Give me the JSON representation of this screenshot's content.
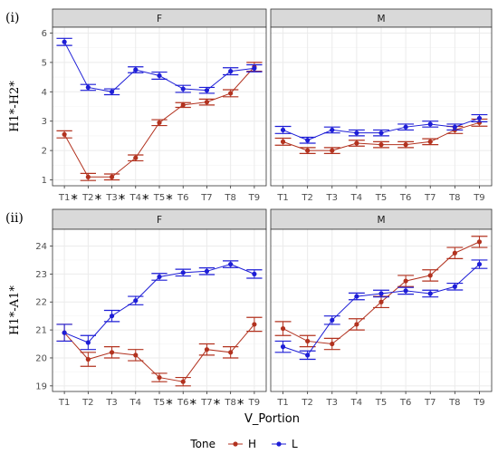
{
  "chart_data": [
    {
      "type": "line",
      "label": "(i)",
      "ylabel": "H1*-H2*",
      "xlabel": "",
      "ylim": [
        0.8,
        6.2
      ],
      "yticks": [
        1,
        2,
        3,
        4,
        5,
        6
      ],
      "categories": [
        "T1",
        "T2",
        "T3",
        "T4",
        "T5",
        "T6",
        "T7",
        "T8",
        "T9"
      ],
      "panels": [
        {
          "strip": "F",
          "tick_labels": [
            "T1",
            "T2",
            "T3",
            "T4",
            "T5",
            "T6",
            "T7",
            "T8",
            "T9"
          ],
          "starred": [
            true,
            true,
            true,
            true,
            true,
            false,
            false,
            false,
            false
          ],
          "series": [
            {
              "name": "H",
              "values": [
                2.55,
                1.1,
                1.1,
                1.75,
                2.95,
                3.55,
                3.65,
                3.95,
                4.85
              ],
              "err": [
                0.12,
                0.12,
                0.1,
                0.1,
                0.1,
                0.08,
                0.1,
                0.12,
                0.15
              ]
            },
            {
              "name": "L",
              "values": [
                5.7,
                4.15,
                4.0,
                4.75,
                4.55,
                4.1,
                4.05,
                4.7,
                4.8
              ],
              "err": [
                0.12,
                0.1,
                0.1,
                0.1,
                0.12,
                0.12,
                0.1,
                0.12,
                0.12
              ]
            }
          ]
        },
        {
          "strip": "M",
          "tick_labels": [
            "T1",
            "T2",
            "T3",
            "T4",
            "T5",
            "T6",
            "T7",
            "T8",
            "T9"
          ],
          "starred": [
            false,
            false,
            false,
            false,
            false,
            false,
            false,
            false,
            false
          ],
          "series": [
            {
              "name": "H",
              "values": [
                2.3,
                2.0,
                2.0,
                2.25,
                2.2,
                2.2,
                2.3,
                2.7,
                2.95
              ],
              "err": [
                0.12,
                0.1,
                0.1,
                0.1,
                0.1,
                0.1,
                0.1,
                0.12,
                0.12
              ]
            },
            {
              "name": "L",
              "values": [
                2.7,
                2.35,
                2.7,
                2.6,
                2.6,
                2.8,
                2.9,
                2.8,
                3.1
              ],
              "err": [
                0.12,
                0.1,
                0.1,
                0.1,
                0.1,
                0.1,
                0.1,
                0.1,
                0.12
              ]
            }
          ]
        }
      ]
    },
    {
      "type": "line",
      "label": "(ii)",
      "ylabel": "H1*-A1*",
      "xlabel": "V_Portion",
      "ylim": [
        18.8,
        24.6
      ],
      "yticks": [
        19,
        20,
        21,
        22,
        23,
        24
      ],
      "categories": [
        "T1",
        "T2",
        "T3",
        "T4",
        "T5",
        "T6",
        "T7",
        "T8",
        "T9"
      ],
      "panels": [
        {
          "strip": "F",
          "tick_labels": [
            "T1",
            "T2",
            "T3",
            "T4",
            "T5",
            "T6",
            "T7",
            "T8",
            "T9"
          ],
          "starred": [
            false,
            false,
            false,
            false,
            true,
            true,
            true,
            true,
            false
          ],
          "series": [
            {
              "name": "H",
              "values": [
                20.9,
                19.95,
                20.2,
                20.1,
                19.3,
                19.15,
                20.3,
                20.2,
                21.2
              ],
              "err": [
                0.3,
                0.25,
                0.2,
                0.2,
                0.15,
                0.15,
                0.2,
                0.2,
                0.25
              ]
            },
            {
              "name": "L",
              "values": [
                20.9,
                20.55,
                21.5,
                22.05,
                22.9,
                23.05,
                23.1,
                23.35,
                23.0
              ],
              "err": [
                0.3,
                0.25,
                0.2,
                0.15,
                0.12,
                0.12,
                0.12,
                0.12,
                0.15
              ]
            }
          ]
        },
        {
          "strip": "M",
          "tick_labels": [
            "T1",
            "T2",
            "T3",
            "T4",
            "T5",
            "T6",
            "T7",
            "T8",
            "T9"
          ],
          "starred": [
            false,
            false,
            false,
            false,
            false,
            false,
            false,
            false,
            false
          ],
          "series": [
            {
              "name": "H",
              "values": [
                21.05,
                20.6,
                20.5,
                21.2,
                22.0,
                22.75,
                22.95,
                23.75,
                24.15
              ],
              "err": [
                0.25,
                0.2,
                0.2,
                0.2,
                0.2,
                0.2,
                0.2,
                0.2,
                0.2
              ]
            },
            {
              "name": "L",
              "values": [
                20.4,
                20.1,
                21.35,
                22.2,
                22.3,
                22.4,
                22.3,
                22.55,
                23.35
              ],
              "err": [
                0.2,
                0.15,
                0.15,
                0.12,
                0.12,
                0.12,
                0.12,
                0.12,
                0.15
              ]
            }
          ]
        }
      ]
    }
  ],
  "legend": {
    "title": "Tone",
    "items": [
      {
        "name": "H",
        "color": "#b2321f"
      },
      {
        "name": "L",
        "color": "#1d1dd6"
      }
    ]
  },
  "star_symbol": "*",
  "colors": {
    "H": "#b2321f",
    "L": "#1d1dd6",
    "panel_bg": "#ffffff",
    "grid": "#ebebeb",
    "strip_bg": "#d9d9d9"
  }
}
